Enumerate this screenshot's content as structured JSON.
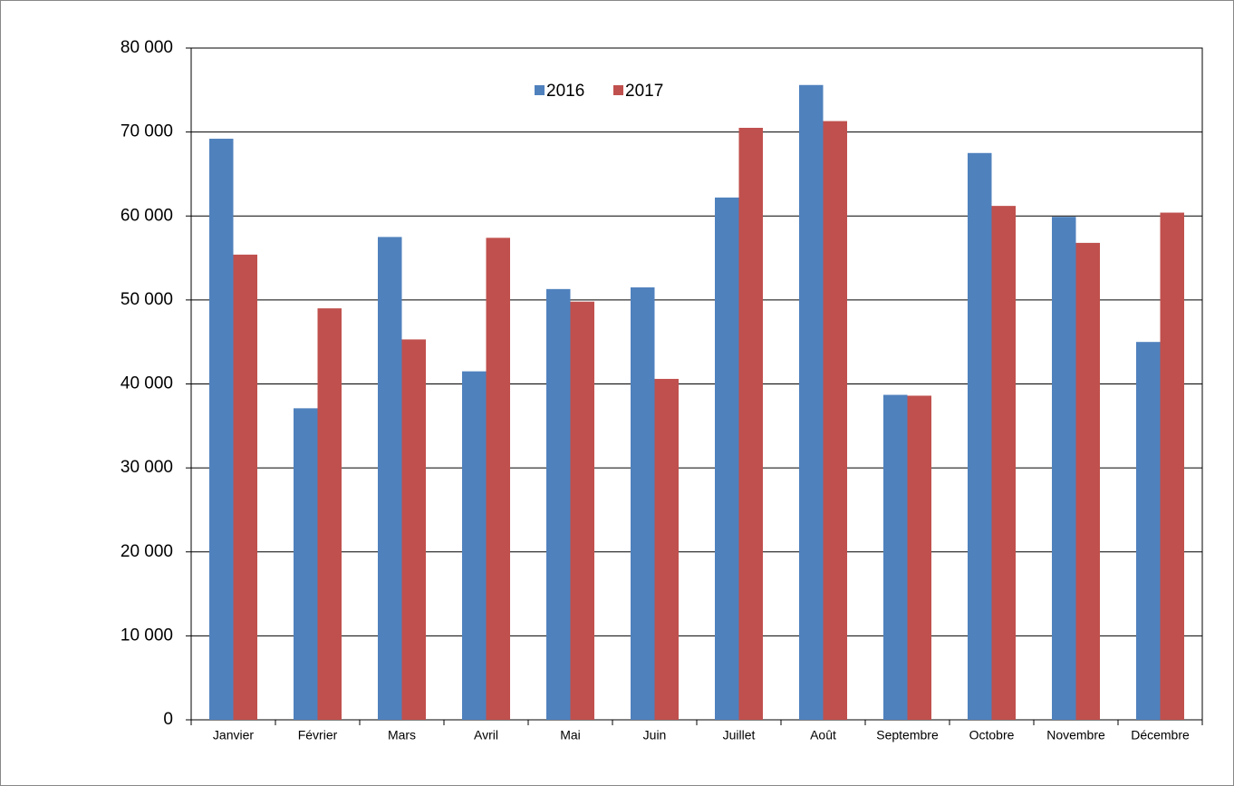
{
  "chart_data": {
    "type": "bar",
    "categories": [
      "Janvier",
      "Février",
      "Mars",
      "Avril",
      "Mai",
      "Juin",
      "Juillet",
      "Août",
      "Septembre",
      "Octobre",
      "Novembre",
      "Décembre"
    ],
    "series": [
      {
        "name": "2016",
        "color": "#4f81bd",
        "values": [
          69200,
          37100,
          57500,
          41500,
          51300,
          51500,
          62200,
          75600,
          38700,
          67500,
          59900,
          45000
        ]
      },
      {
        "name": "2017",
        "color": "#c0504d",
        "values": [
          55400,
          49000,
          45300,
          57400,
          49800,
          40600,
          70500,
          71300,
          38600,
          61200,
          56800,
          60400
        ]
      }
    ],
    "ylim": [
      0,
      80000
    ],
    "yticks": [
      0,
      {
        "value": 10000,
        "label": "10 000"
      },
      {
        "value": 20000,
        "label": "20 000"
      },
      {
        "value": 30000,
        "label": "30 000"
      },
      {
        "value": 40000,
        "label": "40 000"
      },
      {
        "value": 50000,
        "label": "50 000"
      },
      {
        "value": 60000,
        "label": "60 000"
      },
      {
        "value": 70000,
        "label": "70 000"
      },
      {
        "value": 80000,
        "label": "80 000"
      }
    ],
    "grid": true,
    "legend": "top"
  }
}
